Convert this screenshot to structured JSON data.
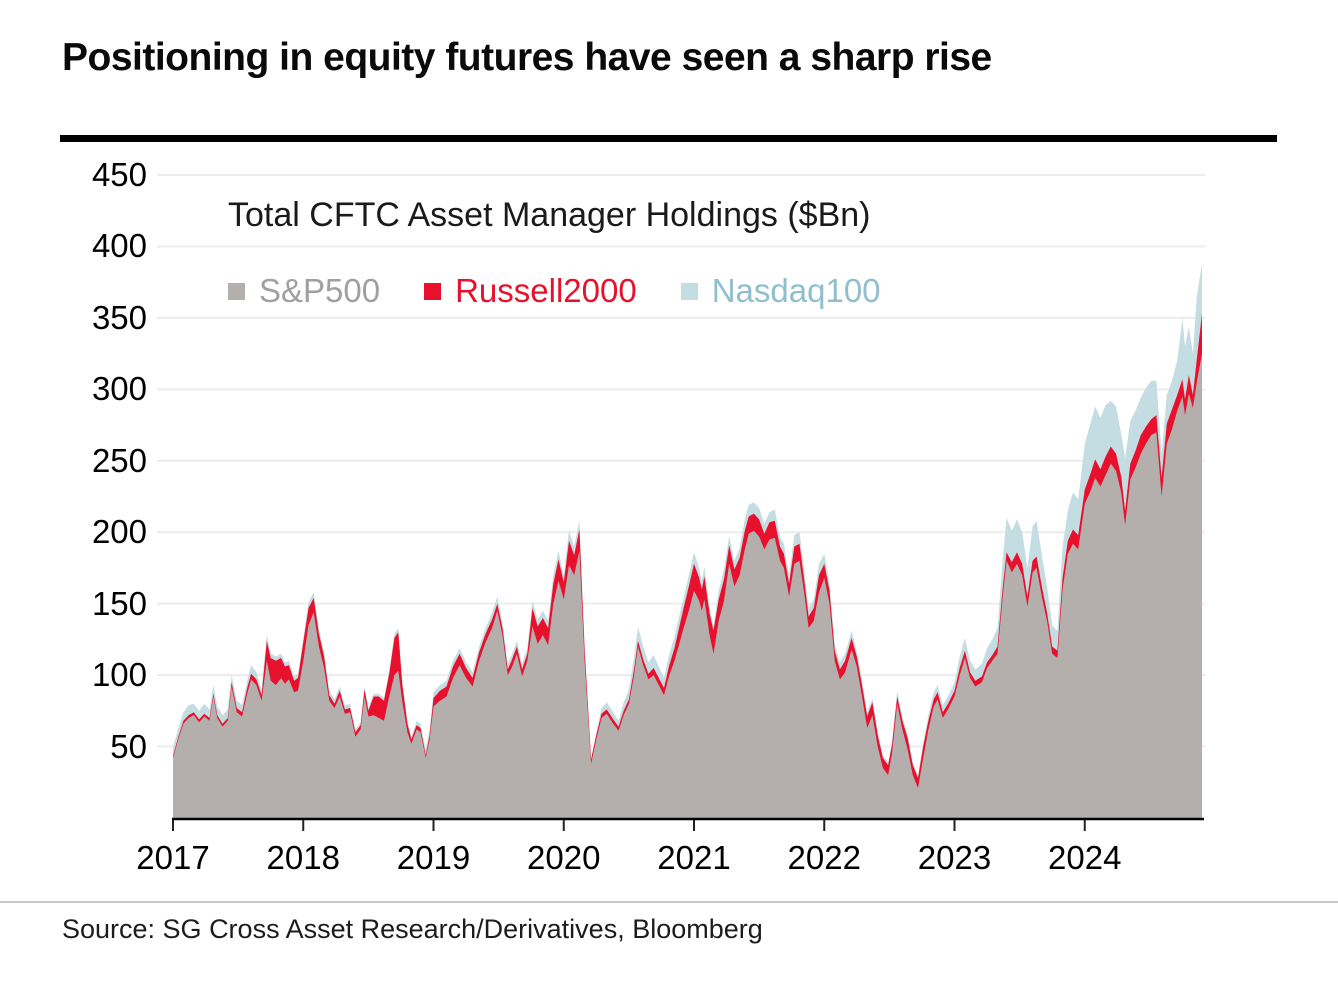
{
  "page": {
    "title": "Positioning in equity futures have seen a sharp rise",
    "source": "Source: SG Cross Asset Research/Derivatives, Bloomberg"
  },
  "chart_data": {
    "type": "area",
    "stacked": true,
    "title": "Total CFTC Asset Manager Holdings ($Bn)",
    "ylabel": "",
    "xlabel": "",
    "grid": "horizontal",
    "legend_position": "top-left-inside",
    "xlim": [
      2017,
      2024.9
    ],
    "ylim": [
      0,
      460
    ],
    "xticks": [
      2017,
      2018,
      2019,
      2020,
      2021,
      2022,
      2023,
      2024
    ],
    "yticks": [
      50,
      100,
      150,
      200,
      250,
      300,
      350,
      400,
      450
    ],
    "series": [
      {
        "name": "S&P500",
        "color": "#b4afac",
        "label_color": "#a0a0a0"
      },
      {
        "name": "Russell2000",
        "color": "#e8112d",
        "label_color": "#e8112d"
      },
      {
        "name": "Nasdaq100",
        "color": "#c4dde2",
        "label_color": "#8fbfcc"
      }
    ],
    "points_format": [
      "year",
      "S&P500",
      "Russell2000",
      "Nasdaq100"
    ],
    "points": [
      [
        2017.0,
        42,
        1.5,
        6
      ],
      [
        2017.04,
        55,
        1.5,
        6
      ],
      [
        2017.08,
        66,
        2,
        6
      ],
      [
        2017.12,
        70,
        2,
        7
      ],
      [
        2017.16,
        72,
        2,
        6
      ],
      [
        2017.2,
        67,
        2,
        6
      ],
      [
        2017.24,
        71,
        2,
        7
      ],
      [
        2017.28,
        68,
        2,
        6
      ],
      [
        2017.31,
        85,
        2,
        6
      ],
      [
        2017.34,
        70,
        2,
        6
      ],
      [
        2017.38,
        64,
        2,
        6
      ],
      [
        2017.42,
        68,
        2,
        6
      ],
      [
        2017.45,
        92,
        3,
        5
      ],
      [
        2017.49,
        74,
        3,
        5
      ],
      [
        2017.53,
        71,
        3,
        5
      ],
      [
        2017.57,
        87,
        4,
        5
      ],
      [
        2017.6,
        97,
        4,
        6
      ],
      [
        2017.64,
        93,
        4,
        5
      ],
      [
        2017.68,
        82,
        4,
        4
      ],
      [
        2017.72,
        110,
        14,
        4
      ],
      [
        2017.75,
        96,
        16,
        3
      ],
      [
        2017.79,
        93,
        17,
        3
      ],
      [
        2017.83,
        98,
        14,
        3
      ],
      [
        2017.86,
        94,
        12,
        3
      ],
      [
        2017.89,
        97,
        10,
        3
      ],
      [
        2017.93,
        88,
        8,
        3
      ],
      [
        2017.96,
        89,
        9,
        3
      ],
      [
        2018.0,
        110,
        13,
        3
      ],
      [
        2018.04,
        135,
        12,
        4
      ],
      [
        2018.08,
        144,
        10,
        4
      ],
      [
        2018.12,
        120,
        9,
        3
      ],
      [
        2018.16,
        105,
        8,
        3
      ],
      [
        2018.2,
        82,
        4,
        3
      ],
      [
        2018.24,
        77,
        3,
        3
      ],
      [
        2018.28,
        85,
        4,
        3
      ],
      [
        2018.32,
        73,
        3,
        3
      ],
      [
        2018.36,
        74,
        3,
        3
      ],
      [
        2018.4,
        57,
        3,
        2
      ],
      [
        2018.44,
        62,
        3,
        2
      ],
      [
        2018.47,
        85,
        5,
        2
      ],
      [
        2018.5,
        71,
        4,
        2
      ],
      [
        2018.54,
        72,
        13,
        2
      ],
      [
        2018.58,
        70,
        15,
        2
      ],
      [
        2018.62,
        68,
        14,
        2
      ],
      [
        2018.66,
        85,
        16,
        2
      ],
      [
        2018.7,
        100,
        26,
        3
      ],
      [
        2018.73,
        103,
        27,
        3
      ],
      [
        2018.76,
        82,
        12,
        2
      ],
      [
        2018.8,
        60,
        6,
        2
      ],
      [
        2018.83,
        52,
        3,
        2
      ],
      [
        2018.87,
        62,
        3,
        3
      ],
      [
        2018.9,
        60,
        3,
        3
      ],
      [
        2018.94,
        42,
        2,
        4
      ],
      [
        2018.97,
        55,
        3,
        4
      ],
      [
        2019.0,
        78,
        6,
        4
      ],
      [
        2019.05,
        82,
        7,
        4
      ],
      [
        2019.1,
        85,
        7,
        4
      ],
      [
        2019.15,
        98,
        8,
        4
      ],
      [
        2019.2,
        107,
        8,
        4
      ],
      [
        2019.25,
        98,
        7,
        4
      ],
      [
        2019.3,
        92,
        6,
        4
      ],
      [
        2019.35,
        110,
        6,
        4
      ],
      [
        2019.4,
        123,
        6,
        4
      ],
      [
        2019.45,
        133,
        6,
        5
      ],
      [
        2019.49,
        145,
        5,
        5
      ],
      [
        2019.53,
        128,
        5,
        4
      ],
      [
        2019.57,
        100,
        4,
        4
      ],
      [
        2019.6,
        105,
        5,
        4
      ],
      [
        2019.64,
        115,
        5,
        4
      ],
      [
        2019.68,
        99,
        5,
        4
      ],
      [
        2019.72,
        110,
        5,
        4
      ],
      [
        2019.76,
        134,
        13,
        5
      ],
      [
        2019.8,
        122,
        12,
        5
      ],
      [
        2019.84,
        128,
        12,
        5
      ],
      [
        2019.88,
        121,
        12,
        5
      ],
      [
        2019.92,
        150,
        14,
        6
      ],
      [
        2019.96,
        166,
        15,
        6
      ],
      [
        2020.0,
        153,
        12,
        5
      ],
      [
        2020.04,
        177,
        17,
        7
      ],
      [
        2020.08,
        170,
        14,
        6
      ],
      [
        2020.12,
        187,
        15,
        6
      ],
      [
        2020.16,
        110,
        8,
        4
      ],
      [
        2020.21,
        38,
        3,
        1
      ],
      [
        2020.25,
        55,
        3,
        2
      ],
      [
        2020.29,
        70,
        3,
        4
      ],
      [
        2020.33,
        73,
        3,
        5
      ],
      [
        2020.38,
        66,
        3,
        5
      ],
      [
        2020.42,
        61,
        3,
        4
      ],
      [
        2020.46,
        72,
        3,
        6
      ],
      [
        2020.5,
        80,
        3,
        7
      ],
      [
        2020.54,
        100,
        4,
        9
      ],
      [
        2020.57,
        120,
        4,
        10
      ],
      [
        2020.61,
        107,
        4,
        9
      ],
      [
        2020.65,
        97,
        4,
        8
      ],
      [
        2020.69,
        100,
        5,
        9
      ],
      [
        2020.73,
        93,
        5,
        8
      ],
      [
        2020.77,
        86,
        5,
        7
      ],
      [
        2020.81,
        100,
        7,
        8
      ],
      [
        2020.85,
        110,
        9,
        8
      ],
      [
        2020.89,
        123,
        12,
        8
      ],
      [
        2020.92,
        133,
        14,
        7
      ],
      [
        2020.96,
        145,
        17,
        8
      ],
      [
        2021.0,
        159,
        19,
        8
      ],
      [
        2021.04,
        152,
        16,
        7
      ],
      [
        2021.06,
        145,
        15,
        6
      ],
      [
        2021.08,
        153,
        16,
        7
      ],
      [
        2021.12,
        128,
        15,
        5
      ],
      [
        2021.15,
        115,
        16,
        4
      ],
      [
        2021.19,
        138,
        15,
        6
      ],
      [
        2021.23,
        152,
        15,
        7
      ],
      [
        2021.27,
        178,
        13,
        6
      ],
      [
        2021.31,
        162,
        12,
        6
      ],
      [
        2021.35,
        170,
        12,
        7
      ],
      [
        2021.39,
        188,
        13,
        8
      ],
      [
        2021.42,
        199,
        12,
        8
      ],
      [
        2021.46,
        201,
        12,
        8
      ],
      [
        2021.5,
        197,
        12,
        8
      ],
      [
        2021.54,
        188,
        11,
        7
      ],
      [
        2021.58,
        195,
        12,
        7
      ],
      [
        2021.62,
        196,
        12,
        8
      ],
      [
        2021.66,
        180,
        10,
        7
      ],
      [
        2021.69,
        175,
        10,
        7
      ],
      [
        2021.73,
        155,
        9,
        6
      ],
      [
        2021.77,
        178,
        12,
        8
      ],
      [
        2021.81,
        180,
        12,
        8
      ],
      [
        2021.85,
        155,
        9,
        7
      ],
      [
        2021.88,
        133,
        8,
        6
      ],
      [
        2021.92,
        138,
        9,
        6
      ],
      [
        2021.96,
        158,
        12,
        8
      ],
      [
        2022.0,
        168,
        10,
        7
      ],
      [
        2022.04,
        150,
        9,
        6
      ],
      [
        2022.08,
        110,
        7,
        5
      ],
      [
        2022.12,
        97,
        7,
        5
      ],
      [
        2022.16,
        102,
        8,
        5
      ],
      [
        2022.21,
        118,
        8,
        5
      ],
      [
        2022.25,
        106,
        7,
        4
      ],
      [
        2022.29,
        85,
        8,
        4
      ],
      [
        2022.33,
        63,
        8,
        3
      ],
      [
        2022.37,
        72,
        9,
        3
      ],
      [
        2022.41,
        50,
        8,
        3
      ],
      [
        2022.45,
        35,
        7,
        2
      ],
      [
        2022.49,
        30,
        7,
        2
      ],
      [
        2022.52,
        45,
        6,
        3
      ],
      [
        2022.56,
        80,
        5,
        4
      ],
      [
        2022.6,
        62,
        6,
        3
      ],
      [
        2022.64,
        48,
        8,
        3
      ],
      [
        2022.68,
        30,
        7,
        2
      ],
      [
        2022.72,
        21,
        7,
        2
      ],
      [
        2022.76,
        42,
        8,
        3
      ],
      [
        2022.8,
        62,
        6,
        4
      ],
      [
        2022.84,
        78,
        5,
        5
      ],
      [
        2022.87,
        83,
        5,
        5
      ],
      [
        2022.91,
        70,
        4,
        5
      ],
      [
        2022.95,
        76,
        4,
        5
      ],
      [
        2023.0,
        85,
        4,
        6
      ],
      [
        2023.04,
        100,
        5,
        8
      ],
      [
        2023.08,
        112,
        5,
        9
      ],
      [
        2023.12,
        98,
        4,
        8
      ],
      [
        2023.16,
        92,
        4,
        8
      ],
      [
        2023.21,
        95,
        4,
        9
      ],
      [
        2023.25,
        105,
        4,
        10
      ],
      [
        2023.29,
        110,
        4,
        11
      ],
      [
        2023.33,
        115,
        5,
        13
      ],
      [
        2023.37,
        155,
        6,
        20
      ],
      [
        2023.4,
        180,
        6,
        24
      ],
      [
        2023.44,
        172,
        7,
        22
      ],
      [
        2023.48,
        178,
        8,
        23
      ],
      [
        2023.52,
        170,
        8,
        22
      ],
      [
        2023.56,
        148,
        7,
        20
      ],
      [
        2023.6,
        172,
        8,
        24
      ],
      [
        2023.63,
        175,
        8,
        25
      ],
      [
        2023.67,
        155,
        7,
        22
      ],
      [
        2023.71,
        138,
        6,
        18
      ],
      [
        2023.75,
        115,
        5,
        15
      ],
      [
        2023.79,
        112,
        5,
        14
      ],
      [
        2023.83,
        160,
        8,
        22
      ],
      [
        2023.87,
        185,
        9,
        21
      ],
      [
        2023.91,
        192,
        10,
        26
      ],
      [
        2023.95,
        188,
        10,
        25
      ],
      [
        2024.0,
        220,
        10,
        32
      ],
      [
        2024.04,
        228,
        12,
        35
      ],
      [
        2024.08,
        238,
        13,
        37
      ],
      [
        2024.12,
        232,
        12,
        36
      ],
      [
        2024.16,
        240,
        13,
        36
      ],
      [
        2024.2,
        248,
        12,
        32
      ],
      [
        2024.24,
        243,
        12,
        33
      ],
      [
        2024.28,
        228,
        11,
        30
      ],
      [
        2024.31,
        205,
        10,
        37
      ],
      [
        2024.35,
        237,
        11,
        30
      ],
      [
        2024.39,
        245,
        12,
        28
      ],
      [
        2024.43,
        255,
        13,
        26
      ],
      [
        2024.47,
        262,
        12,
        27
      ],
      [
        2024.51,
        268,
        11,
        27
      ],
      [
        2024.55,
        270,
        12,
        24
      ],
      [
        2024.59,
        225,
        13,
        17
      ],
      [
        2024.63,
        262,
        14,
        20
      ],
      [
        2024.67,
        272,
        14,
        20
      ],
      [
        2024.71,
        285,
        11,
        24
      ],
      [
        2024.75,
        295,
        12,
        43
      ],
      [
        2024.77,
        282,
        11,
        37
      ],
      [
        2024.8,
        297,
        13,
        34
      ],
      [
        2024.83,
        287,
        9,
        29
      ],
      [
        2024.86,
        305,
        16,
        44
      ],
      [
        2024.9,
        325,
        28,
        35
      ]
    ]
  }
}
